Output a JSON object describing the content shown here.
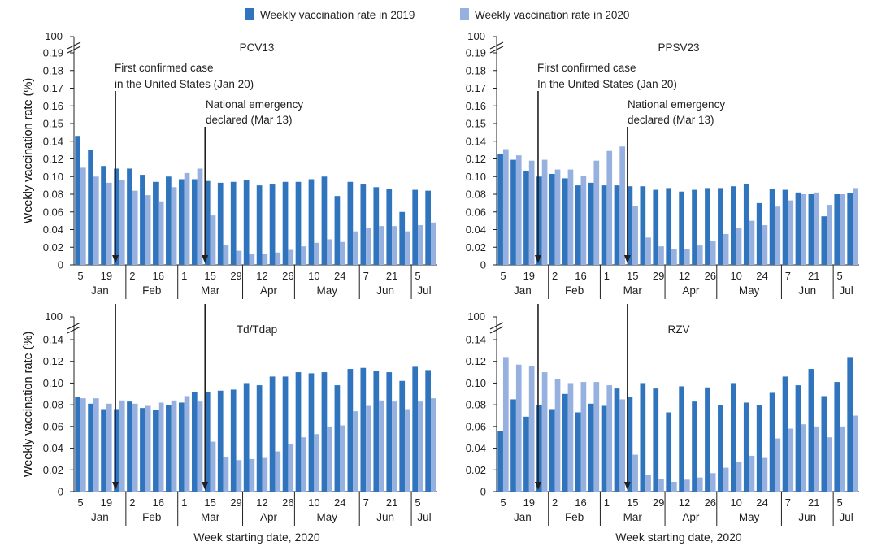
{
  "legend": {
    "items": [
      {
        "label": "Weekly vaccination rate in 2019",
        "color": "#2f74bd"
      },
      {
        "label": "Weekly vaccination rate in 2020",
        "color": "#96b1e0"
      }
    ]
  },
  "common": {
    "xlabel": "Week starting date, 2020",
    "ylabel": "Weekly vaccination rate (%)",
    "break_top_label": "100",
    "week_ticks": [
      "5",
      "19",
      "2",
      "16",
      "1",
      "15",
      "29",
      "12",
      "26",
      "10",
      "24",
      "7",
      "21",
      "5"
    ],
    "months": [
      "Jan",
      "Feb",
      "Mar",
      "Apr",
      "May",
      "Jun",
      "Jul"
    ],
    "annotations": {
      "first_case_line1": "First confirmed case",
      "first_case_line2_pcv": "in the United States (Jan 20)",
      "first_case_line2_ppsv": "In the United States (Jan 20)",
      "emergency_line1": "National emergency",
      "emergency_line2": "declared (Mar 13)"
    }
  },
  "chart_data": [
    {
      "type": "bar",
      "title": "PCV13",
      "ylim": [
        0,
        0.19
      ],
      "yticks": [
        "0",
        "0.02",
        "0.04",
        "0.06",
        "0.08",
        "0.10",
        "0.12",
        "0.14",
        "0.15",
        "0.16",
        "0.17",
        "0.18",
        "0.19"
      ],
      "categories": [
        "Jan 5",
        "Jan 12",
        "Jan 19",
        "Jan 26",
        "Feb 2",
        "Feb 9",
        "Feb 16",
        "Feb 23",
        "Mar 1",
        "Mar 8",
        "Mar 15",
        "Mar 22",
        "Mar 29",
        "Apr 5",
        "Apr 12",
        "Apr 19",
        "Apr 26",
        "May 3",
        "May 10",
        "May 17",
        "May 24",
        "May 31",
        "Jun 7",
        "Jun 14",
        "Jun 21",
        "Jun 28",
        "Jul 5",
        "Jul 12"
      ],
      "series": [
        {
          "name": "Weekly vaccination rate in 2019",
          "values": [
            0.143,
            0.13,
            0.112,
            0.109,
            0.109,
            0.102,
            0.094,
            0.1,
            0.097,
            0.097,
            0.095,
            0.093,
            0.094,
            0.096,
            0.09,
            0.091,
            0.094,
            0.094,
            0.097,
            0.1,
            0.078,
            0.094,
            0.091,
            0.088,
            0.086,
            0.06,
            0.085,
            0.084
          ]
        },
        {
          "name": "Weekly vaccination rate in 2020",
          "values": [
            0.11,
            0.1,
            0.093,
            0.096,
            0.084,
            0.079,
            0.072,
            0.088,
            0.104,
            0.109,
            0.056,
            0.023,
            0.016,
            0.012,
            0.012,
            0.014,
            0.017,
            0.021,
            0.025,
            0.029,
            0.026,
            0.038,
            0.042,
            0.044,
            0.044,
            0.038,
            0.045,
            0.048
          ]
        }
      ]
    },
    {
      "type": "bar",
      "title": "PPSV23",
      "ylim": [
        0,
        0.19
      ],
      "yticks": [
        "0",
        "0.02",
        "0.04",
        "0.06",
        "0.08",
        "0.10",
        "0.12",
        "0.14",
        "0.15",
        "0.16",
        "0.17",
        "0.18",
        "0.19"
      ],
      "categories": [
        "Jan 5",
        "Jan 12",
        "Jan 19",
        "Jan 26",
        "Feb 2",
        "Feb 9",
        "Feb 16",
        "Feb 23",
        "Mar 1",
        "Mar 8",
        "Mar 15",
        "Mar 22",
        "Mar 29",
        "Apr 5",
        "Apr 12",
        "Apr 19",
        "Apr 26",
        "May 3",
        "May 10",
        "May 17",
        "May 24",
        "May 31",
        "Jun 7",
        "Jun 14",
        "Jun 21",
        "Jun 28",
        "Jul 5",
        "Jul 12"
      ],
      "series": [
        {
          "name": "Weekly vaccination rate in 2019",
          "values": [
            0.126,
            0.119,
            0.106,
            0.1,
            0.103,
            0.098,
            0.09,
            0.093,
            0.09,
            0.09,
            0.089,
            0.089,
            0.085,
            0.087,
            0.083,
            0.085,
            0.087,
            0.087,
            0.089,
            0.092,
            0.07,
            0.086,
            0.085,
            0.082,
            0.08,
            0.055,
            0.08,
            0.081
          ]
        },
        {
          "name": "Weekly vaccination rate in 2020",
          "values": [
            0.131,
            0.124,
            0.118,
            0.119,
            0.108,
            0.108,
            0.101,
            0.118,
            0.129,
            0.134,
            0.067,
            0.031,
            0.021,
            0.018,
            0.018,
            0.022,
            0.027,
            0.035,
            0.042,
            0.05,
            0.045,
            0.066,
            0.073,
            0.08,
            0.082,
            0.068,
            0.08,
            0.087
          ]
        }
      ]
    },
    {
      "type": "bar",
      "title": "Td/Tdap",
      "ylim": [
        0,
        0.14
      ],
      "yticks": [
        "0",
        "0.02",
        "0.04",
        "0.06",
        "0.08",
        "0.10",
        "0.12",
        "0.14"
      ],
      "categories": [
        "Jan 5",
        "Jan 12",
        "Jan 19",
        "Jan 26",
        "Feb 2",
        "Feb 9",
        "Feb 16",
        "Feb 23",
        "Mar 1",
        "Mar 8",
        "Mar 15",
        "Mar 22",
        "Mar 29",
        "Apr 5",
        "Apr 12",
        "Apr 19",
        "Apr 26",
        "May 3",
        "May 10",
        "May 17",
        "May 24",
        "May 31",
        "Jun 7",
        "Jun 14",
        "Jun 21",
        "Jun 28",
        "Jul 5",
        "Jul 12"
      ],
      "series": [
        {
          "name": "Weekly vaccination rate in 2019",
          "values": [
            0.087,
            0.081,
            0.076,
            0.076,
            0.083,
            0.077,
            0.075,
            0.08,
            0.082,
            0.092,
            0.092,
            0.093,
            0.094,
            0.1,
            0.098,
            0.106,
            0.106,
            0.11,
            0.109,
            0.11,
            0.098,
            0.113,
            0.114,
            0.111,
            0.11,
            0.102,
            0.115,
            0.112
          ]
        },
        {
          "name": "Weekly vaccination rate in 2020",
          "values": [
            0.086,
            0.086,
            0.081,
            0.084,
            0.081,
            0.079,
            0.082,
            0.084,
            0.088,
            0.083,
            0.046,
            0.032,
            0.029,
            0.03,
            0.031,
            0.037,
            0.044,
            0.05,
            0.053,
            0.06,
            0.061,
            0.074,
            0.079,
            0.084,
            0.083,
            0.076,
            0.083,
            0.086
          ]
        }
      ]
    },
    {
      "type": "bar",
      "title": "RZV",
      "ylim": [
        0,
        0.14
      ],
      "yticks": [
        "0",
        "0.02",
        "0.04",
        "0.06",
        "0.08",
        "0.10",
        "0.12",
        "0.14"
      ],
      "categories": [
        "Jan 5",
        "Jan 12",
        "Jan 19",
        "Jan 26",
        "Feb 2",
        "Feb 9",
        "Feb 16",
        "Feb 23",
        "Mar 1",
        "Mar 8",
        "Mar 15",
        "Mar 22",
        "Mar 29",
        "Apr 5",
        "Apr 12",
        "Apr 19",
        "Apr 26",
        "May 3",
        "May 10",
        "May 17",
        "May 24",
        "May 31",
        "Jun 7",
        "Jun 14",
        "Jun 21",
        "Jun 28",
        "Jul 5",
        "Jul 12"
      ],
      "series": [
        {
          "name": "Weekly vaccination rate in 2019",
          "values": [
            0.056,
            0.085,
            0.069,
            0.08,
            0.076,
            0.09,
            0.073,
            0.081,
            0.079,
            0.095,
            0.087,
            0.1,
            0.095,
            0.073,
            0.097,
            0.083,
            0.096,
            0.08,
            0.1,
            0.082,
            0.08,
            0.091,
            0.106,
            0.098,
            0.113,
            0.088,
            0.101,
            0.124
          ]
        },
        {
          "name": "Weekly vaccination rate in 2020",
          "values": [
            0.124,
            0.117,
            0.116,
            0.11,
            0.104,
            0.1,
            0.101,
            0.101,
            0.098,
            0.085,
            0.034,
            0.015,
            0.012,
            0.009,
            0.011,
            0.013,
            0.017,
            0.022,
            0.027,
            0.033,
            0.031,
            0.049,
            0.058,
            0.062,
            0.06,
            0.05,
            0.06,
            0.07
          ]
        }
      ]
    }
  ]
}
